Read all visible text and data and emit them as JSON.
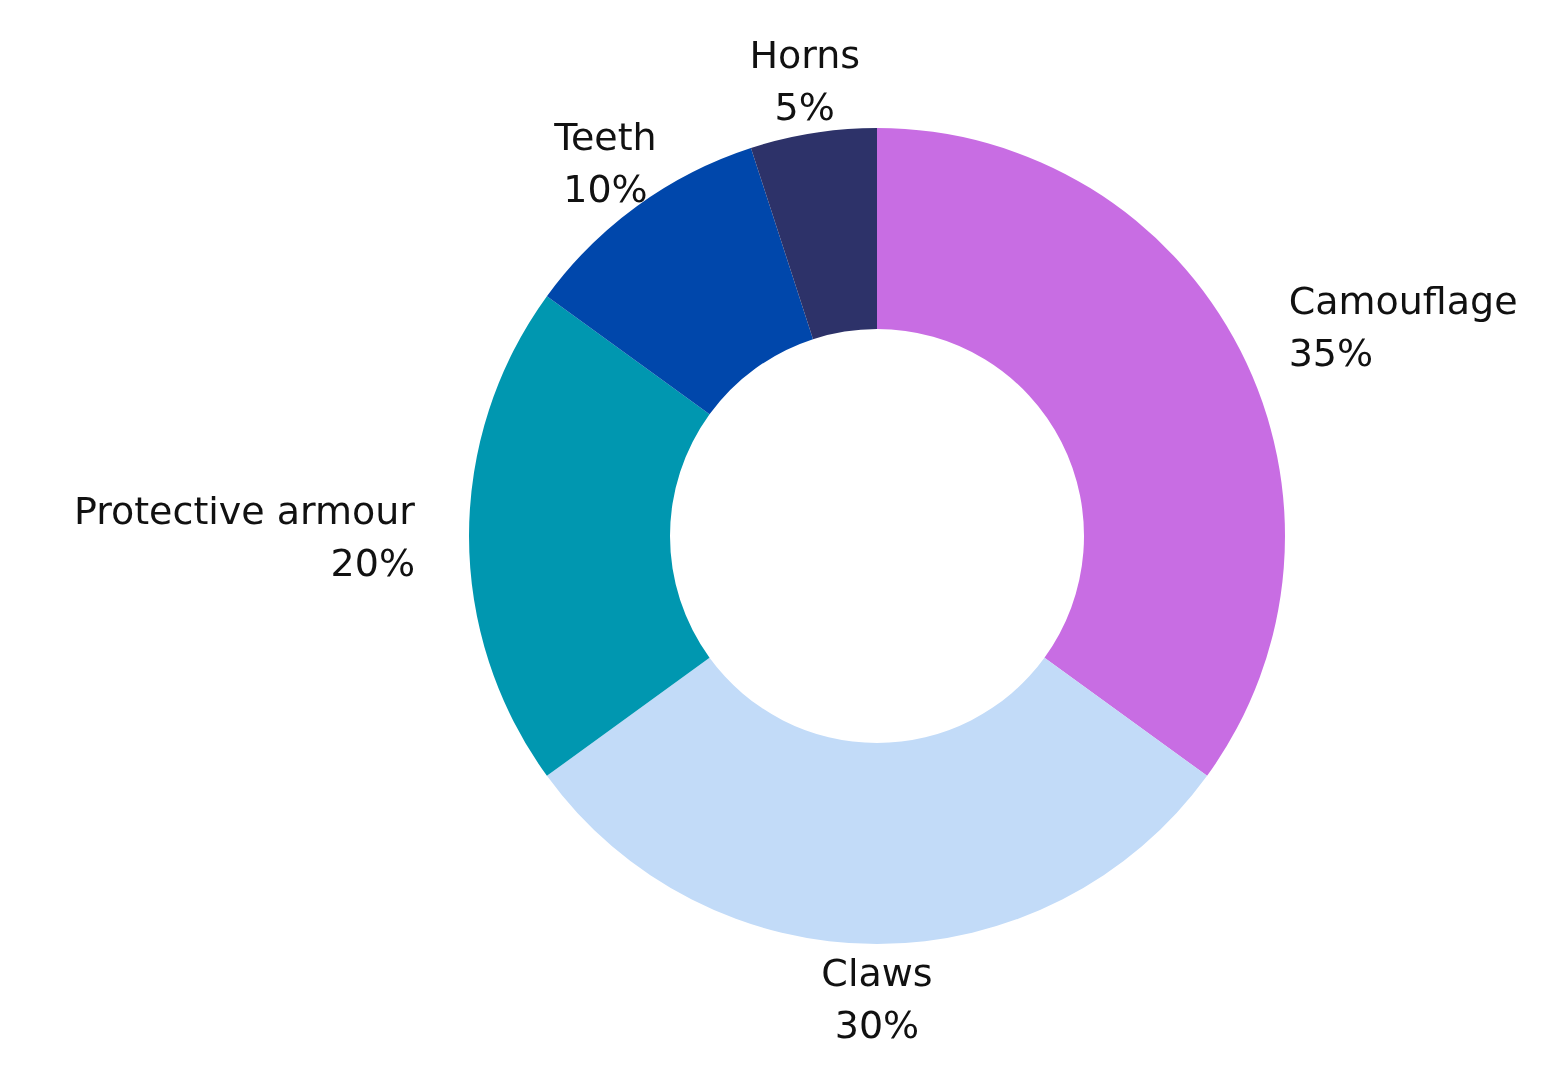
{
  "chart_data": {
    "type": "donut",
    "categories": [
      "Camouflage",
      "Claws",
      "Protective armour",
      "Teeth",
      "Horns"
    ],
    "values": [
      35,
      30,
      20,
      10,
      5
    ],
    "value_labels": [
      "35%",
      "30%",
      "20%",
      "10%",
      "5%"
    ],
    "colors": [
      "#c86de3",
      "#c2dbf8",
      "#0097b0",
      "#0047ab",
      "#2d3269"
    ]
  }
}
